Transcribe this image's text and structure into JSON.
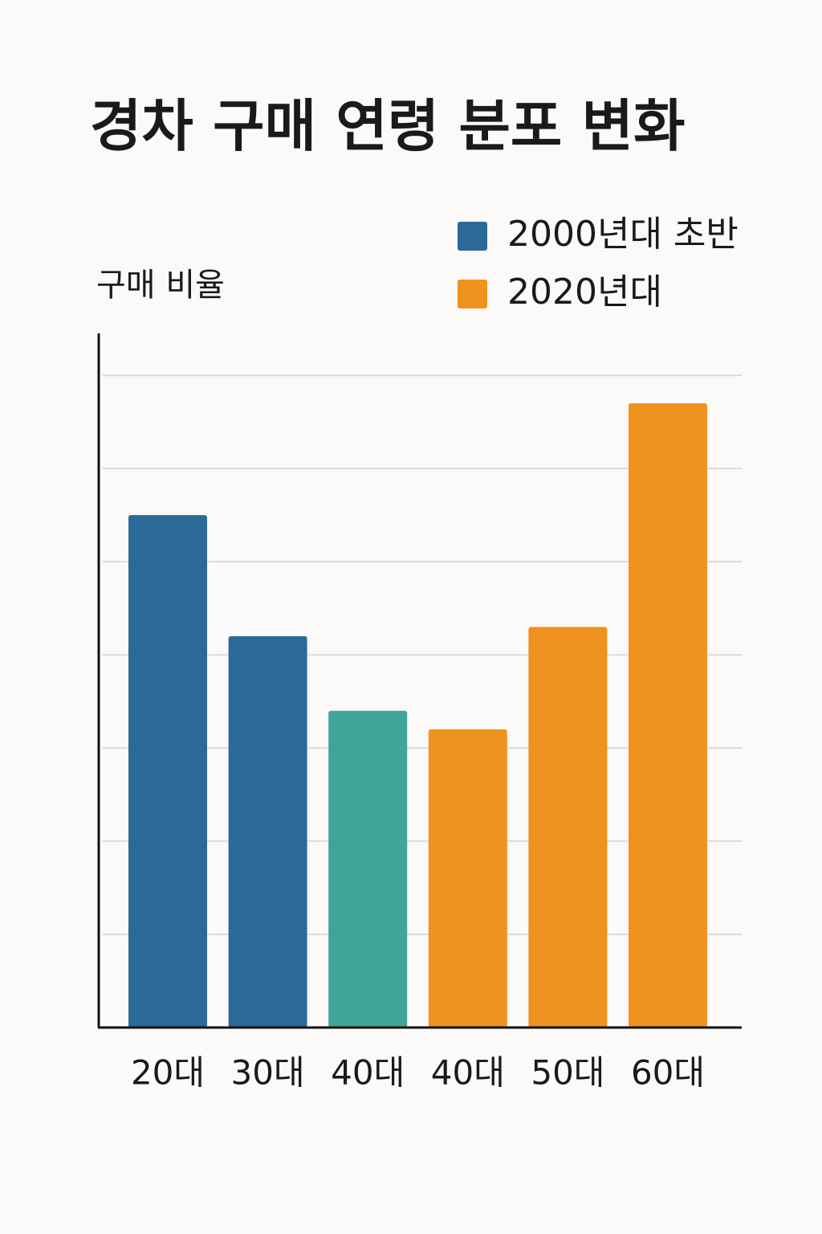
{
  "chart_data": {
    "type": "bar",
    "title": "경차 구매 연령 분포 변화",
    "y_label": "구매 비율",
    "categories": [
      "20대",
      "30대",
      "40대",
      "40대",
      "50대",
      "60대"
    ],
    "values": [
      5.5,
      4.2,
      3.4,
      3.2,
      4.3,
      6.7
    ],
    "colors": [
      "#2b6a97",
      "#2b6a97",
      "#3fa598",
      "#f0921e",
      "#f0921e",
      "#f0921e"
    ],
    "legend": [
      {
        "name": "2000년대 초반",
        "color": "#2b6a97"
      },
      {
        "name": "2020년대",
        "color": "#f0921e"
      }
    ],
    "ylim": [
      0,
      7.45
    ],
    "yticks": [
      1,
      2,
      3,
      4,
      5,
      6,
      7
    ],
    "grid": true
  }
}
